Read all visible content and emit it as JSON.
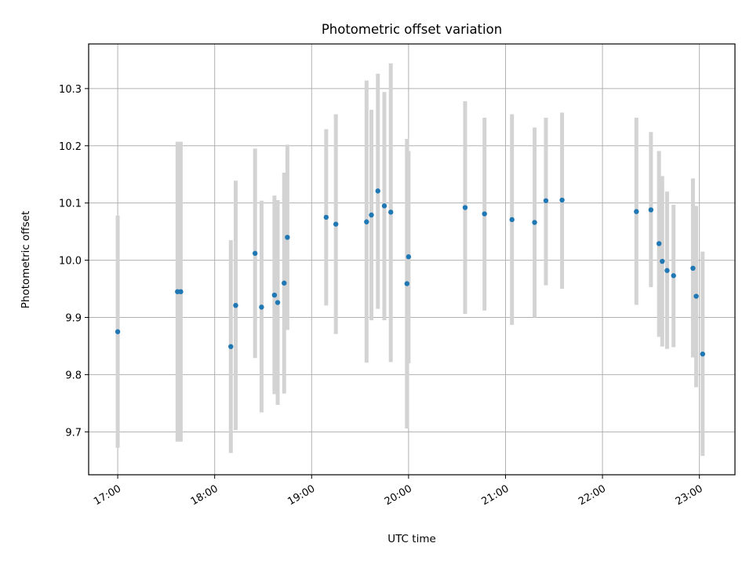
{
  "chart_data": {
    "type": "scatter",
    "title": "Photometric offset variation",
    "xlabel": "UTC time",
    "ylabel": "Photometric offset",
    "x_axis": {
      "type": "time",
      "range": [
        "16:42",
        "23:22"
      ],
      "ticks": [
        {
          "value": "17:00",
          "label": "17:00"
        },
        {
          "value": "18:00",
          "label": "18:00"
        },
        {
          "value": "19:00",
          "label": "19:00"
        },
        {
          "value": "20:00",
          "label": "20:00"
        },
        {
          "value": "21:00",
          "label": "21:00"
        },
        {
          "value": "22:00",
          "label": "22:00"
        },
        {
          "value": "23:00",
          "label": "23:00"
        }
      ]
    },
    "y_axis": {
      "range": [
        9.625,
        10.378
      ],
      "ticks": [
        {
          "value": 9.7,
          "label": "9.7"
        },
        {
          "value": 9.8,
          "label": "9.8"
        },
        {
          "value": 9.9,
          "label": "9.9"
        },
        {
          "value": 10.0,
          "label": "10.0"
        },
        {
          "value": 10.1,
          "label": "10.1"
        },
        {
          "value": 10.2,
          "label": "10.2"
        },
        {
          "value": 10.3,
          "label": "10.3"
        }
      ]
    },
    "grid": true,
    "colors": {
      "point": "#1f77b4",
      "errorbar": "#d3d3d3",
      "grid": "#b0b0b0"
    },
    "points": [
      {
        "time": "17:00",
        "y": 9.875,
        "y_low": 9.672,
        "y_high": 10.078
      },
      {
        "time": "17:37",
        "y": 9.945,
        "y_low": 9.683,
        "y_high": 10.207
      },
      {
        "time": "17:39",
        "y": 9.945,
        "y_low": 9.683,
        "y_high": 10.207
      },
      {
        "time": "18:10",
        "y": 9.849,
        "y_low": 9.663,
        "y_high": 10.035
      },
      {
        "time": "18:13",
        "y": 9.921,
        "y_low": 9.703,
        "y_high": 10.139
      },
      {
        "time": "18:25",
        "y": 10.012,
        "y_low": 9.829,
        "y_high": 10.195
      },
      {
        "time": "18:29",
        "y": 9.918,
        "y_low": 9.734,
        "y_high": 10.104
      },
      {
        "time": "18:37",
        "y": 9.939,
        "y_low": 9.766,
        "y_high": 10.113
      },
      {
        "time": "18:39",
        "y": 9.926,
        "y_low": 9.747,
        "y_high": 10.105
      },
      {
        "time": "18:43",
        "y": 9.96,
        "y_low": 9.767,
        "y_high": 10.153
      },
      {
        "time": "18:45",
        "y": 10.04,
        "y_low": 9.878,
        "y_high": 10.202
      },
      {
        "time": "19:09",
        "y": 10.075,
        "y_low": 9.921,
        "y_high": 10.229
      },
      {
        "time": "19:15",
        "y": 10.063,
        "y_low": 9.871,
        "y_high": 10.255
      },
      {
        "time": "19:34",
        "y": 10.067,
        "y_low": 9.821,
        "y_high": 10.314
      },
      {
        "time": "19:37",
        "y": 10.079,
        "y_low": 9.895,
        "y_high": 10.263
      },
      {
        "time": "19:41",
        "y": 10.121,
        "y_low": 9.915,
        "y_high": 10.326
      },
      {
        "time": "19:45",
        "y": 10.095,
        "y_low": 9.895,
        "y_high": 10.294
      },
      {
        "time": "19:49",
        "y": 10.084,
        "y_low": 9.822,
        "y_high": 10.344
      },
      {
        "time": "19:59",
        "y": 9.959,
        "y_low": 9.706,
        "y_high": 10.212
      },
      {
        "time": "20:00",
        "y": 10.006,
        "y_low": 9.82,
        "y_high": 10.191
      },
      {
        "time": "20:35",
        "y": 10.092,
        "y_low": 9.906,
        "y_high": 10.278
      },
      {
        "time": "20:47",
        "y": 10.081,
        "y_low": 9.912,
        "y_high": 10.249
      },
      {
        "time": "21:04",
        "y": 10.071,
        "y_low": 9.887,
        "y_high": 10.255
      },
      {
        "time": "21:18",
        "y": 10.066,
        "y_low": 9.9,
        "y_high": 10.232
      },
      {
        "time": "21:25",
        "y": 10.104,
        "y_low": 9.956,
        "y_high": 10.249
      },
      {
        "time": "21:35",
        "y": 10.105,
        "y_low": 9.95,
        "y_high": 10.258
      },
      {
        "time": "22:21",
        "y": 10.085,
        "y_low": 9.922,
        "y_high": 10.249
      },
      {
        "time": "22:30",
        "y": 10.088,
        "y_low": 9.953,
        "y_high": 10.224
      },
      {
        "time": "22:35",
        "y": 10.029,
        "y_low": 9.866,
        "y_high": 10.191
      },
      {
        "time": "22:37",
        "y": 9.998,
        "y_low": 9.849,
        "y_high": 10.147
      },
      {
        "time": "22:40",
        "y": 9.982,
        "y_low": 9.845,
        "y_high": 10.12
      },
      {
        "time": "22:44",
        "y": 9.973,
        "y_low": 9.848,
        "y_high": 10.097
      },
      {
        "time": "22:56",
        "y": 9.986,
        "y_low": 9.83,
        "y_high": 10.143
      },
      {
        "time": "22:58",
        "y": 9.937,
        "y_low": 9.778,
        "y_high": 10.095
      },
      {
        "time": "23:02",
        "y": 9.836,
        "y_low": 9.658,
        "y_high": 10.015
      }
    ]
  }
}
